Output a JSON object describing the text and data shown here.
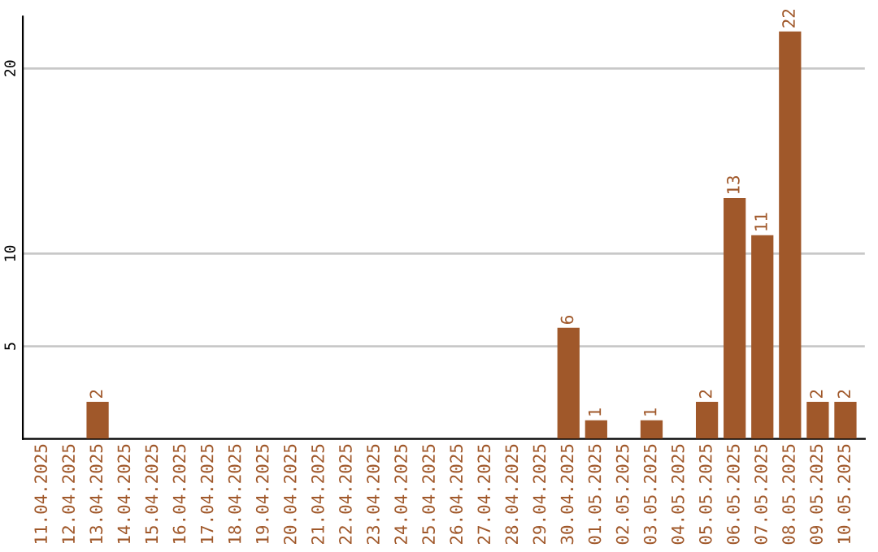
{
  "chart_data": {
    "type": "bar",
    "categories": [
      "11.04.2025",
      "12.04.2025",
      "13.04.2025",
      "14.04.2025",
      "15.04.2025",
      "16.04.2025",
      "17.04.2025",
      "18.04.2025",
      "19.04.2025",
      "20.04.2025",
      "21.04.2025",
      "22.04.2025",
      "23.04.2025",
      "24.04.2025",
      "25.04.2025",
      "26.04.2025",
      "27.04.2025",
      "28.04.2025",
      "29.04.2025",
      "30.04.2025",
      "01.05.2025",
      "02.05.2025",
      "03.05.2025",
      "04.05.2025",
      "05.05.2025",
      "06.05.2025",
      "07.05.2025",
      "08.05.2025",
      "09.05.2025",
      "10.05.2025"
    ],
    "values": [
      0,
      0,
      2,
      0,
      0,
      0,
      0,
      0,
      0,
      0,
      0,
      0,
      0,
      0,
      0,
      0,
      0,
      0,
      0,
      6,
      1,
      0,
      1,
      0,
      2,
      13,
      11,
      22,
      2,
      2
    ],
    "value_labels": [
      null,
      null,
      "2",
      null,
      null,
      null,
      null,
      null,
      null,
      null,
      null,
      null,
      null,
      null,
      null,
      null,
      null,
      null,
      null,
      "6",
      "1",
      null,
      "1",
      null,
      "2",
      "13",
      "11",
      "22",
      "2",
      "2"
    ],
    "color": "#a0582a",
    "ylim": [
      0,
      22.8
    ],
    "yticks": [
      5,
      10,
      20
    ],
    "grid": "y",
    "legend": false
  }
}
